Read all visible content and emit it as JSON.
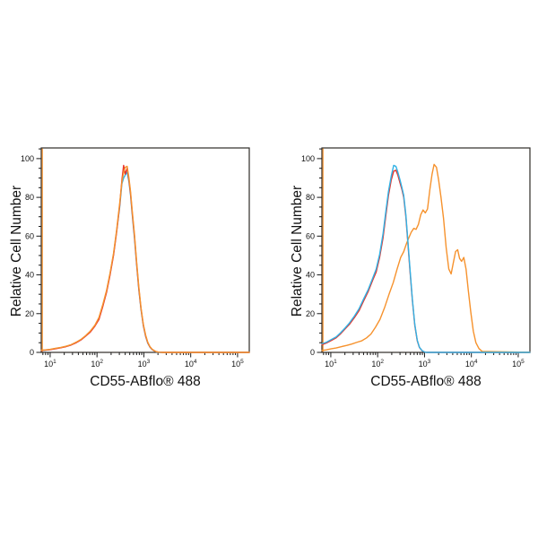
{
  "figure": {
    "style": {
      "background": "#ffffff",
      "frame_color": "#2e2b27",
      "tick_color": "#1a1a1a",
      "text_color": "#111111"
    }
  },
  "chart_data": [
    {
      "type": "line",
      "name": "left-histogram",
      "title": "",
      "xlabel": "CD55-ABflo® 488",
      "ylabel": "Relative Cell Number",
      "x_scale": "log",
      "xlim": [
        6.5,
        178000
      ],
      "ylim": [
        0,
        105.5
      ],
      "x_major_ticks": [
        10,
        100,
        1000,
        10000,
        100000
      ],
      "x_tick_base": "10",
      "x_tick_exponents": [
        1,
        2,
        3,
        4,
        5
      ],
      "y_major_ticks": [
        0,
        20,
        40,
        60,
        80,
        100
      ],
      "y_minor_step": 5,
      "grid": false,
      "legend": null,
      "axis_edge_line_color": "#f6922d",
      "series": [
        {
          "name": "cyan-blue",
          "color": "#31b2e5",
          "x": [
            6.5,
            8,
            10,
            13,
            17,
            22,
            28,
            36,
            46,
            58,
            72,
            90,
            110,
            134,
            160,
            190,
            225,
            262,
            305,
            340,
            370,
            400,
            440,
            480,
            520,
            565,
            630,
            700,
            780,
            870,
            975,
            1090,
            1210,
            1350,
            1510,
            1700,
            1880,
            2100,
            2600,
            178000
          ],
          "y": [
            1,
            1.1,
            1.5,
            2,
            2.5,
            3.1,
            3.9,
            5.1,
            6.6,
            8.6,
            10.8,
            13.8,
            17.5,
            24.5,
            31.5,
            40.5,
            50.5,
            62.5,
            75,
            87,
            90,
            91.5,
            93,
            88,
            81,
            71,
            59,
            45.5,
            32.5,
            22,
            13.8,
            8.3,
            4.8,
            2.7,
            1.4,
            0.6,
            0.2,
            0,
            0,
            0
          ]
        },
        {
          "name": "red",
          "color": "#e8332b",
          "x": [
            6.5,
            8,
            10,
            13,
            17,
            22,
            28,
            36,
            46,
            58,
            72,
            90,
            110,
            134,
            160,
            190,
            225,
            262,
            305,
            340,
            370,
            400,
            440,
            480,
            520,
            565,
            630,
            700,
            780,
            870,
            975,
            1090,
            1210,
            1350,
            1510,
            1700,
            1880,
            2100,
            2600,
            178000
          ],
          "y": [
            1,
            1.2,
            1.4,
            1.9,
            2.4,
            3,
            3.8,
            5,
            6.5,
            8.5,
            10.5,
            13.5,
            17,
            24,
            31,
            40,
            50,
            62,
            76,
            89,
            96.5,
            92,
            95,
            89,
            82,
            72,
            60,
            46,
            33,
            22.5,
            14,
            8.5,
            5,
            2.8,
            1.5,
            0.7,
            0.3,
            0.1,
            0,
            0
          ]
        },
        {
          "name": "orange",
          "color": "#f6922d",
          "x": [
            6.5,
            8,
            10,
            13,
            17,
            22,
            28,
            36,
            46,
            58,
            72,
            90,
            110,
            134,
            160,
            190,
            225,
            262,
            305,
            340,
            370,
            400,
            440,
            480,
            520,
            565,
            630,
            700,
            780,
            870,
            975,
            1090,
            1210,
            1350,
            1510,
            1700,
            1880,
            2100,
            2600,
            178000
          ],
          "y": [
            1.2,
            1.3,
            1.6,
            2.1,
            2.6,
            3.2,
            4,
            5.3,
            6.8,
            8.8,
            11,
            14,
            18,
            25,
            32,
            41,
            51,
            63,
            77,
            88,
            93,
            95.5,
            96,
            90,
            83,
            73,
            61,
            47,
            34,
            23,
            14.5,
            9,
            5.3,
            3,
            1.6,
            0.8,
            0.3,
            0.1,
            0,
            0
          ]
        }
      ]
    },
    {
      "type": "line",
      "name": "right-histogram",
      "title": "",
      "xlabel": "CD55-ABflo® 488",
      "ylabel": "Relative Cell Number",
      "x_scale": "log",
      "xlim": [
        6.5,
        178000
      ],
      "ylim": [
        0,
        105.5
      ],
      "x_major_ticks": [
        10,
        100,
        1000,
        10000,
        100000
      ],
      "x_tick_base": "10",
      "x_tick_exponents": [
        1,
        2,
        3,
        4,
        5
      ],
      "y_major_ticks": [
        0,
        20,
        40,
        60,
        80,
        100
      ],
      "y_minor_step": 5,
      "grid": false,
      "legend": null,
      "axis_edge_line_color": "#f6922d",
      "series": [
        {
          "name": "red",
          "color": "#e8332b",
          "x": [
            6.5,
            8,
            10,
            13,
            16,
            20,
            25,
            32,
            40,
            50,
            63,
            79,
            93,
            110,
            130,
            150,
            170,
            195,
            220,
            245,
            270,
            300,
            330,
            360,
            400,
            440,
            490,
            550,
            620,
            700,
            780,
            890,
            1000,
            1100,
            178000
          ],
          "y": [
            4,
            4.8,
            6,
            7.5,
            9.5,
            12,
            14.5,
            18,
            21.5,
            26.5,
            31.5,
            37.5,
            41.5,
            49,
            59,
            71,
            81,
            89,
            93.5,
            94,
            91.5,
            87.5,
            84,
            80,
            70,
            57,
            42,
            27,
            14,
            6,
            2.5,
            0.8,
            0.2,
            0,
            0
          ]
        },
        {
          "name": "orange",
          "color": "#f6922d",
          "x": [
            6.5,
            8,
            10,
            13,
            17,
            22,
            28,
            36,
            46,
            58,
            72,
            90,
            112,
            140,
            175,
            215,
            260,
            310,
            360,
            410,
            460,
            520,
            590,
            660,
            740,
            830,
            930,
            1040,
            1160,
            1300,
            1450,
            1600,
            1800,
            2000,
            2250,
            2550,
            2900,
            3300,
            3700,
            4100,
            4600,
            5100,
            5600,
            6200,
            6900,
            7700,
            8600,
            9700,
            11000,
            12500,
            14500,
            17000,
            178000
          ],
          "y": [
            1,
            1.3,
            1.8,
            2.3,
            3,
            3.6,
            4.3,
            5.2,
            6,
            7.5,
            9.5,
            13,
            17,
            23,
            30,
            36,
            43,
            49,
            52,
            56,
            59,
            62,
            64,
            63.5,
            66,
            71,
            73.5,
            72,
            74,
            84,
            92,
            97,
            95.5,
            89,
            80,
            69,
            54,
            43,
            40.5,
            46,
            52,
            53,
            48.5,
            47,
            49,
            43,
            32,
            21,
            11,
            5,
            2,
            0.5,
            0
          ]
        },
        {
          "name": "cyan-blue",
          "color": "#31b2e5",
          "x": [
            6.5,
            8,
            10,
            13,
            16,
            20,
            25,
            32,
            40,
            50,
            63,
            79,
            93,
            110,
            130,
            150,
            170,
            195,
            220,
            245,
            270,
            300,
            330,
            360,
            400,
            440,
            490,
            550,
            620,
            700,
            780,
            890,
            1000,
            1100,
            178000
          ],
          "y": [
            4.5,
            5.2,
            6.5,
            8,
            10,
            12.5,
            15.2,
            18.8,
            22.5,
            27.5,
            32.5,
            38.5,
            43,
            50.5,
            61,
            73,
            83,
            91,
            96.5,
            96,
            93,
            89,
            85,
            81,
            71,
            58,
            43,
            27.5,
            14.5,
            6.3,
            2.6,
            0.9,
            0.2,
            0,
            0
          ]
        }
      ]
    }
  ]
}
